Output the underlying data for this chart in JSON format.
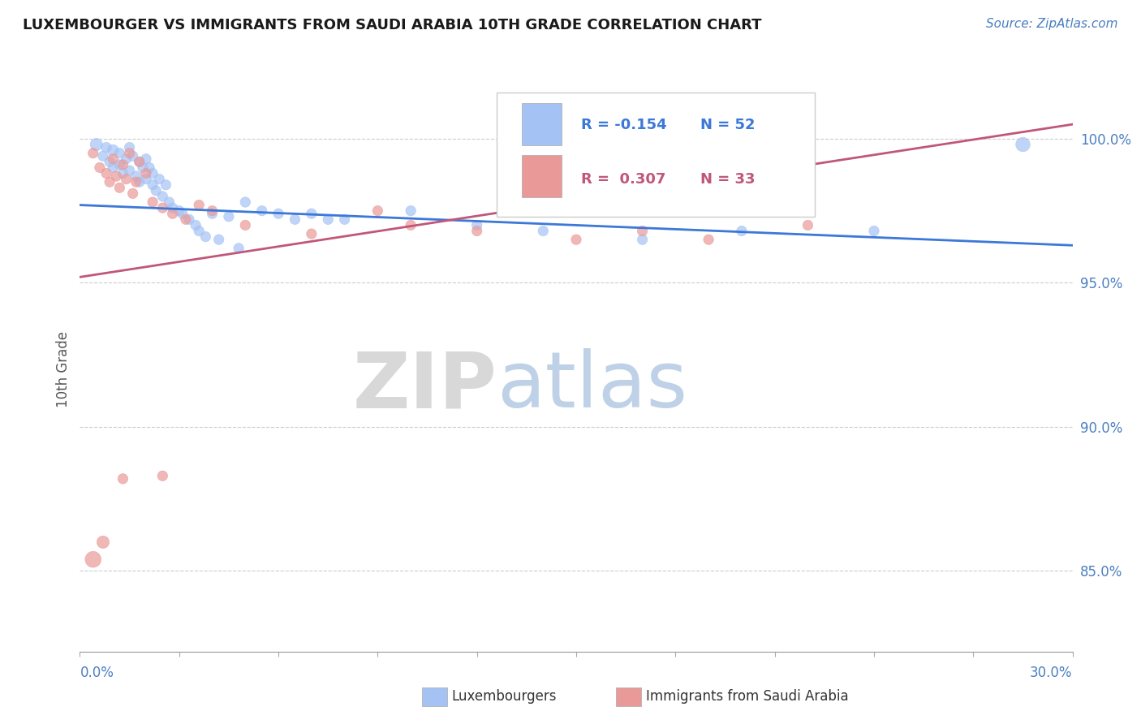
{
  "title": "LUXEMBOURGER VS IMMIGRANTS FROM SAUDI ARABIA 10TH GRADE CORRELATION CHART",
  "source": "Source: ZipAtlas.com",
  "ylabel": "10th Grade",
  "yaxis_labels": [
    "85.0%",
    "90.0%",
    "95.0%",
    "100.0%"
  ],
  "yaxis_values": [
    0.85,
    0.9,
    0.95,
    1.0
  ],
  "xlim": [
    0.0,
    0.3
  ],
  "ylim": [
    0.822,
    1.018
  ],
  "blue_R": -0.154,
  "blue_N": 52,
  "pink_R": 0.307,
  "pink_N": 33,
  "blue_color": "#a4c2f4",
  "pink_color": "#ea9999",
  "blue_line_color": "#3c78d8",
  "pink_line_color": "#c0577a",
  "legend_label_blue": "Luxembourgers",
  "legend_label_pink": "Immigrants from Saudi Arabia",
  "blue_line_x0": 0.0,
  "blue_line_y0": 0.977,
  "blue_line_x1": 0.3,
  "blue_line_y1": 0.963,
  "pink_line_x0": 0.0,
  "pink_line_y0": 0.952,
  "pink_line_x1": 0.3,
  "pink_line_y1": 1.005,
  "blue_x": [
    0.005,
    0.007,
    0.008,
    0.009,
    0.01,
    0.01,
    0.012,
    0.012,
    0.013,
    0.014,
    0.015,
    0.015,
    0.016,
    0.017,
    0.018,
    0.018,
    0.019,
    0.02,
    0.02,
    0.021,
    0.022,
    0.022,
    0.023,
    0.024,
    0.025,
    0.026,
    0.027,
    0.028,
    0.03,
    0.031,
    0.033,
    0.035,
    0.036,
    0.038,
    0.04,
    0.042,
    0.045,
    0.048,
    0.05,
    0.055,
    0.06,
    0.065,
    0.07,
    0.075,
    0.08,
    0.1,
    0.12,
    0.14,
    0.17,
    0.2,
    0.24,
    0.285
  ],
  "blue_y": [
    0.998,
    0.994,
    0.997,
    0.992,
    0.996,
    0.99,
    0.995,
    0.991,
    0.988,
    0.993,
    0.997,
    0.989,
    0.994,
    0.987,
    0.992,
    0.985,
    0.99,
    0.993,
    0.986,
    0.99,
    0.984,
    0.988,
    0.982,
    0.986,
    0.98,
    0.984,
    0.978,
    0.976,
    0.975,
    0.974,
    0.972,
    0.97,
    0.968,
    0.966,
    0.974,
    0.965,
    0.973,
    0.962,
    0.978,
    0.975,
    0.974,
    0.972,
    0.974,
    0.972,
    0.972,
    0.975,
    0.97,
    0.968,
    0.965,
    0.968,
    0.968,
    0.998
  ],
  "blue_sizes": [
    120,
    80,
    80,
    80,
    100,
    80,
    80,
    80,
    80,
    80,
    80,
    80,
    80,
    80,
    80,
    80,
    80,
    80,
    80,
    80,
    80,
    80,
    80,
    80,
    80,
    80,
    80,
    80,
    80,
    80,
    80,
    80,
    80,
    80,
    80,
    80,
    80,
    80,
    80,
    80,
    80,
    80,
    80,
    80,
    80,
    80,
    80,
    80,
    80,
    80,
    80,
    160
  ],
  "pink_x": [
    0.004,
    0.006,
    0.008,
    0.009,
    0.01,
    0.011,
    0.012,
    0.013,
    0.014,
    0.015,
    0.016,
    0.017,
    0.018,
    0.02,
    0.022,
    0.025,
    0.028,
    0.032,
    0.036,
    0.04,
    0.05,
    0.07,
    0.09,
    0.1,
    0.12,
    0.15,
    0.17,
    0.19,
    0.22,
    0.004,
    0.007,
    0.013,
    0.025
  ],
  "pink_y": [
    0.995,
    0.99,
    0.988,
    0.985,
    0.993,
    0.987,
    0.983,
    0.991,
    0.986,
    0.995,
    0.981,
    0.985,
    0.992,
    0.988,
    0.978,
    0.976,
    0.974,
    0.972,
    0.977,
    0.975,
    0.97,
    0.967,
    0.975,
    0.97,
    0.968,
    0.965,
    0.968,
    0.965,
    0.97,
    0.854,
    0.86,
    0.882,
    0.883
  ],
  "pink_sizes": [
    80,
    80,
    80,
    80,
    80,
    80,
    80,
    80,
    80,
    80,
    80,
    80,
    80,
    80,
    80,
    80,
    80,
    80,
    80,
    80,
    80,
    80,
    80,
    80,
    80,
    80,
    80,
    80,
    80,
    200,
    120,
    80,
    80
  ]
}
